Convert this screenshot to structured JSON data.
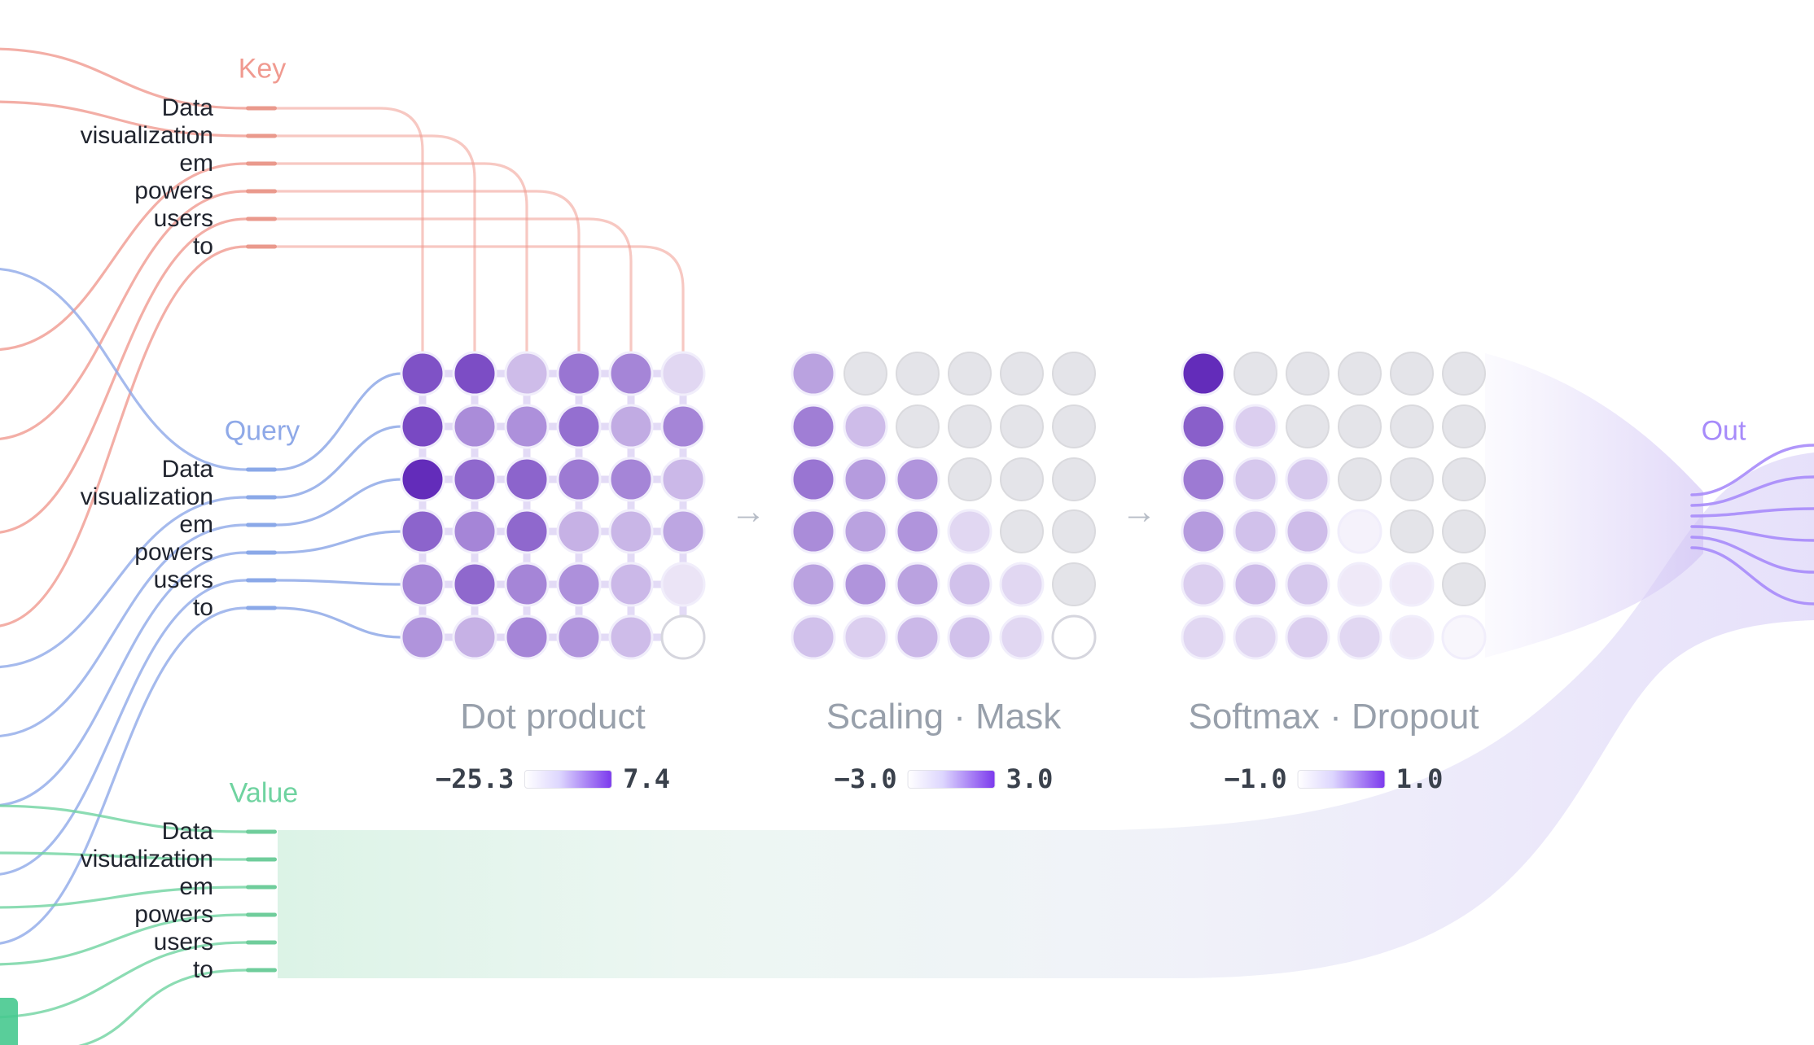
{
  "tokens": [
    "Data",
    "visualization",
    "em",
    "powers",
    "users",
    "to"
  ],
  "labels": {
    "key": "Key",
    "query": "Query",
    "value": "Value",
    "out": "Out"
  },
  "arrow_glyph": "→",
  "stages": [
    {
      "label": "Dot product",
      "scale_min": "−25.3",
      "scale_max": "7.4",
      "grid": [
        [
          0.78,
          0.8,
          0.3,
          0.62,
          0.55,
          0.18
        ],
        [
          0.82,
          0.52,
          0.5,
          0.65,
          0.38,
          0.55
        ],
        [
          0.95,
          0.68,
          0.7,
          0.6,
          0.55,
          0.32
        ],
        [
          0.7,
          0.55,
          0.68,
          0.35,
          0.33,
          0.4
        ],
        [
          0.55,
          0.68,
          0.55,
          0.5,
          0.32,
          0.12
        ],
        [
          0.48,
          0.35,
          0.55,
          0.48,
          0.3,
          0.0
        ]
      ]
    },
    {
      "label": "Scaling · Mask",
      "scale_min": "−3.0",
      "scale_max": "3.0",
      "grid": [
        [
          0.42,
          null,
          null,
          null,
          null,
          null
        ],
        [
          0.58,
          0.3,
          null,
          null,
          null,
          null
        ],
        [
          0.62,
          0.45,
          0.48,
          null,
          null,
          null
        ],
        [
          0.52,
          0.42,
          0.48,
          0.18,
          null,
          null
        ],
        [
          0.42,
          0.48,
          0.42,
          0.28,
          0.18,
          null
        ],
        [
          0.28,
          0.22,
          0.32,
          0.28,
          0.18,
          0.02
        ]
      ]
    },
    {
      "label": "Softmax · Dropout",
      "scale_min": "−1.0",
      "scale_max": "1.0",
      "grid": [
        [
          0.95,
          null,
          null,
          null,
          null,
          null
        ],
        [
          0.72,
          0.22,
          null,
          null,
          null,
          null
        ],
        [
          0.6,
          0.25,
          0.25,
          null,
          null,
          null
        ],
        [
          0.45,
          0.28,
          0.3,
          0.06,
          null,
          null
        ],
        [
          0.22,
          0.3,
          0.25,
          0.1,
          0.1,
          null
        ],
        [
          0.18,
          0.18,
          0.22,
          0.18,
          0.1,
          0.04
        ]
      ]
    }
  ],
  "colors": {
    "key": "#f09a90",
    "query": "#8fa9e8",
    "value": "#6fd3a0",
    "out": "#a78bfa",
    "key_tick": "#ea998c",
    "query_tick": "#8aa8e8",
    "value_tick": "#6fcd9b",
    "cell_max": "#5b21b6",
    "masked_cell": "#e4e4e9",
    "connector": "#ddd3f5"
  }
}
